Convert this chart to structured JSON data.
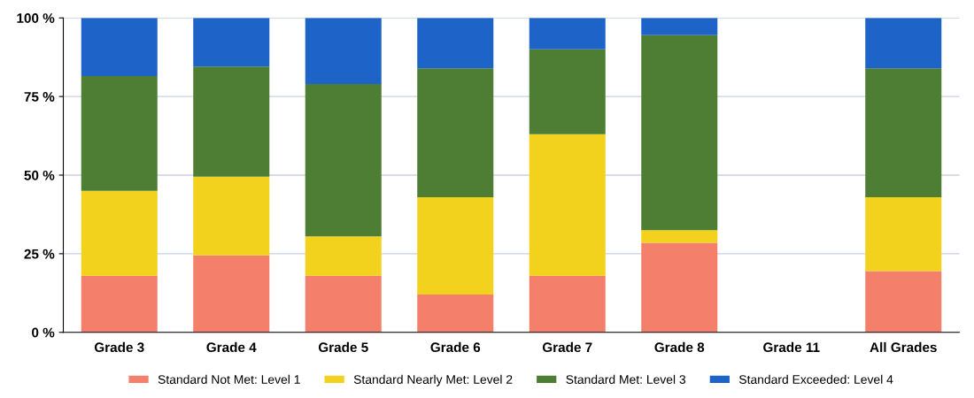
{
  "chart_data": {
    "type": "bar",
    "stacked": true,
    "categories": [
      "Grade 3",
      "Grade 4",
      "Grade 5",
      "Grade 6",
      "Grade 7",
      "Grade 8",
      "Grade 11",
      "All Grades"
    ],
    "series": [
      {
        "name": "Standard Not Met: Level 1",
        "color": "#f47f6b",
        "values": [
          18,
          24.5,
          18,
          12,
          18,
          28.5,
          null,
          19.5
        ]
      },
      {
        "name": "Standard Nearly Met: Level 2",
        "color": "#f2d21c",
        "values": [
          27,
          25,
          12.5,
          31,
          45,
          4,
          null,
          23.5
        ]
      },
      {
        "name": "Standard Met: Level 3",
        "color": "#4e7d34",
        "values": [
          36.5,
          35,
          48.5,
          41,
          27,
          62,
          null,
          41
        ]
      },
      {
        "name": "Standard Exceeded: Level 4",
        "color": "#1e64c8",
        "values": [
          18.5,
          15.5,
          21,
          16,
          10,
          5.5,
          null,
          16
        ]
      }
    ],
    "ylim": [
      0,
      100
    ],
    "yticks": [
      {
        "value": 0,
        "label": "0 %"
      },
      {
        "value": 25,
        "label": "25 %"
      },
      {
        "value": 50,
        "label": "50 %"
      },
      {
        "value": 75,
        "label": "75 %"
      },
      {
        "value": 100,
        "label": "100 %"
      }
    ],
    "grid": "y",
    "legend": "bottom"
  }
}
